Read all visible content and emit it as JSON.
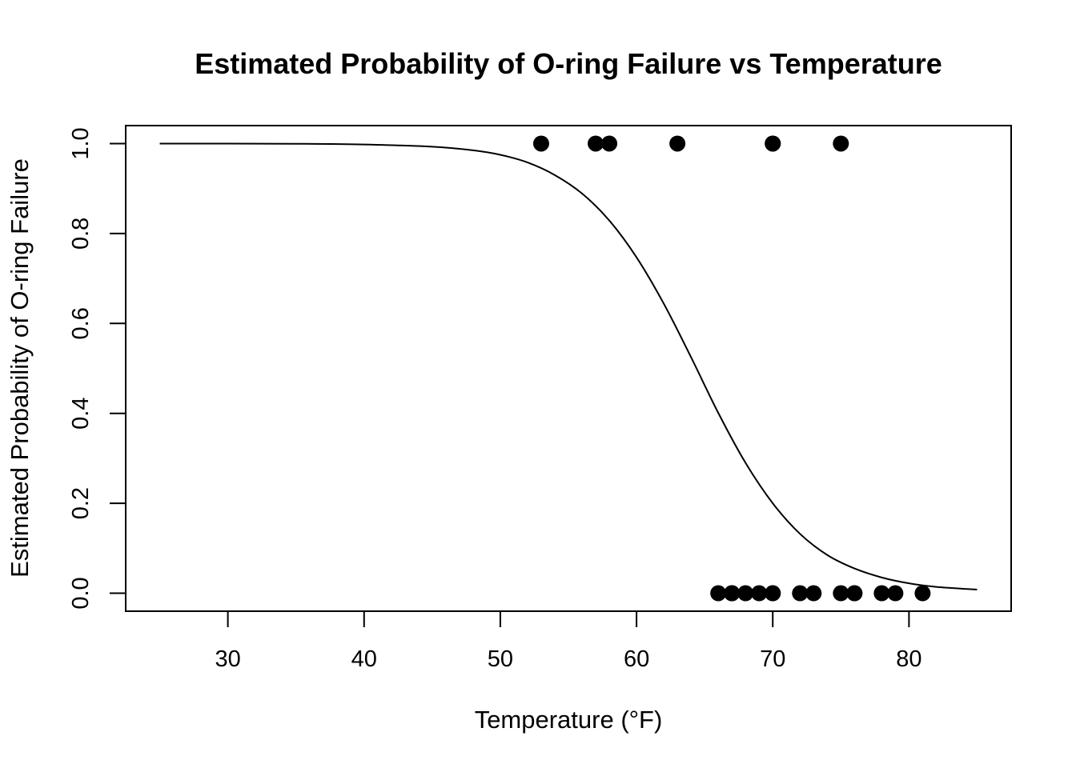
{
  "chart_data": {
    "type": "scatter",
    "title": "Estimated Probability of O-ring Failure vs Temperature",
    "xlabel": "Temperature (°F)",
    "ylabel": "Estimated Probability of O-ring Failure",
    "xlim": [
      22.5,
      87.5
    ],
    "ylim": [
      -0.04,
      1.04
    ],
    "x_ticks": [
      30,
      40,
      50,
      60,
      70,
      80
    ],
    "x_tick_labels": [
      "30",
      "40",
      "50",
      "60",
      "70",
      "80"
    ],
    "y_ticks": [
      0.0,
      0.2,
      0.4,
      0.6,
      0.8,
      1.0
    ],
    "y_tick_labels": [
      "0.0",
      "0.2",
      "0.4",
      "0.6",
      "0.8",
      "1.0"
    ],
    "grid": false,
    "points": {
      "x": [
        53,
        57,
        58,
        63,
        70,
        70,
        75,
        66,
        67,
        67,
        67,
        68,
        69,
        70,
        70,
        72,
        73,
        75,
        76,
        76,
        78,
        79,
        81
      ],
      "y": [
        1,
        1,
        1,
        1,
        1,
        1,
        1,
        0,
        0,
        0,
        0,
        0,
        0,
        0,
        0,
        0,
        0,
        0,
        0,
        0,
        0,
        0,
        0
      ]
    },
    "curve": {
      "type": "line",
      "x": [
        25,
        30,
        35,
        40,
        45,
        48,
        50,
        52,
        54,
        56,
        58,
        60,
        62,
        64,
        66,
        68,
        70,
        72,
        74,
        76,
        78,
        80,
        82,
        85
      ],
      "y": [
        1.0,
        0.9999,
        0.9996,
        0.998,
        0.993,
        0.985,
        0.975,
        0.958,
        0.93,
        0.889,
        0.829,
        0.747,
        0.644,
        0.525,
        0.401,
        0.29,
        0.2,
        0.132,
        0.085,
        0.055,
        0.035,
        0.022,
        0.014,
        0.008
      ]
    },
    "colors": {
      "points": "#000000",
      "curve": "#000000",
      "axes": "#000000",
      "background": "#ffffff"
    }
  }
}
